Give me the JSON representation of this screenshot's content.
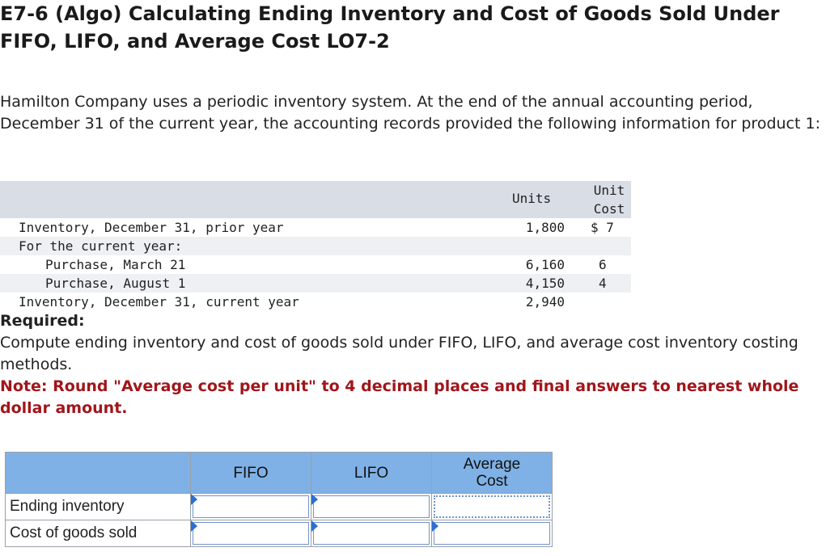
{
  "title": "E7-6 (Algo) Calculating Ending Inventory and Cost of Goods Sold Under FIFO, LIFO, and Average Cost LO7-2",
  "intro": "Hamilton Company uses a periodic inventory system. At the end of the annual accounting period, December 31 of the current year, the accounting records provided the following information for product 1:",
  "inventory_table": {
    "header_units": "Units",
    "header_cost_line1": "Unit",
    "header_cost_line2": "Cost",
    "rows": [
      {
        "label": "Inventory, December 31, prior year",
        "units": "1,800",
        "cost": "$ 7"
      },
      {
        "label": "For the current year:",
        "units": "",
        "cost": ""
      },
      {
        "label": "Purchase, March 21",
        "units": "6,160",
        "cost": "6"
      },
      {
        "label": "Purchase, August 1",
        "units": "4,150",
        "cost": "4"
      },
      {
        "label": "Inventory, December 31, current year",
        "units": "2,940",
        "cost": ""
      }
    ]
  },
  "required_label": "Required:",
  "instruction": "Compute ending inventory and cost of goods sold under FIFO, LIFO, and average cost inventory costing methods.",
  "note": "Note: Round \"Average cost per unit\" to 4 decimal places and final answers to nearest whole dollar amount.",
  "answer_table": {
    "columns": [
      "FIFO",
      "LIFO",
      "Average Cost"
    ],
    "rows": [
      {
        "label": "Ending inventory",
        "values": [
          "",
          "",
          ""
        ]
      },
      {
        "label": "Cost of goods sold",
        "values": [
          "",
          "",
          ""
        ]
      }
    ]
  },
  "colors": {
    "header_fill": "#7fb1e6",
    "note_red": "#a0161b",
    "table_band": "#d9dde5"
  }
}
